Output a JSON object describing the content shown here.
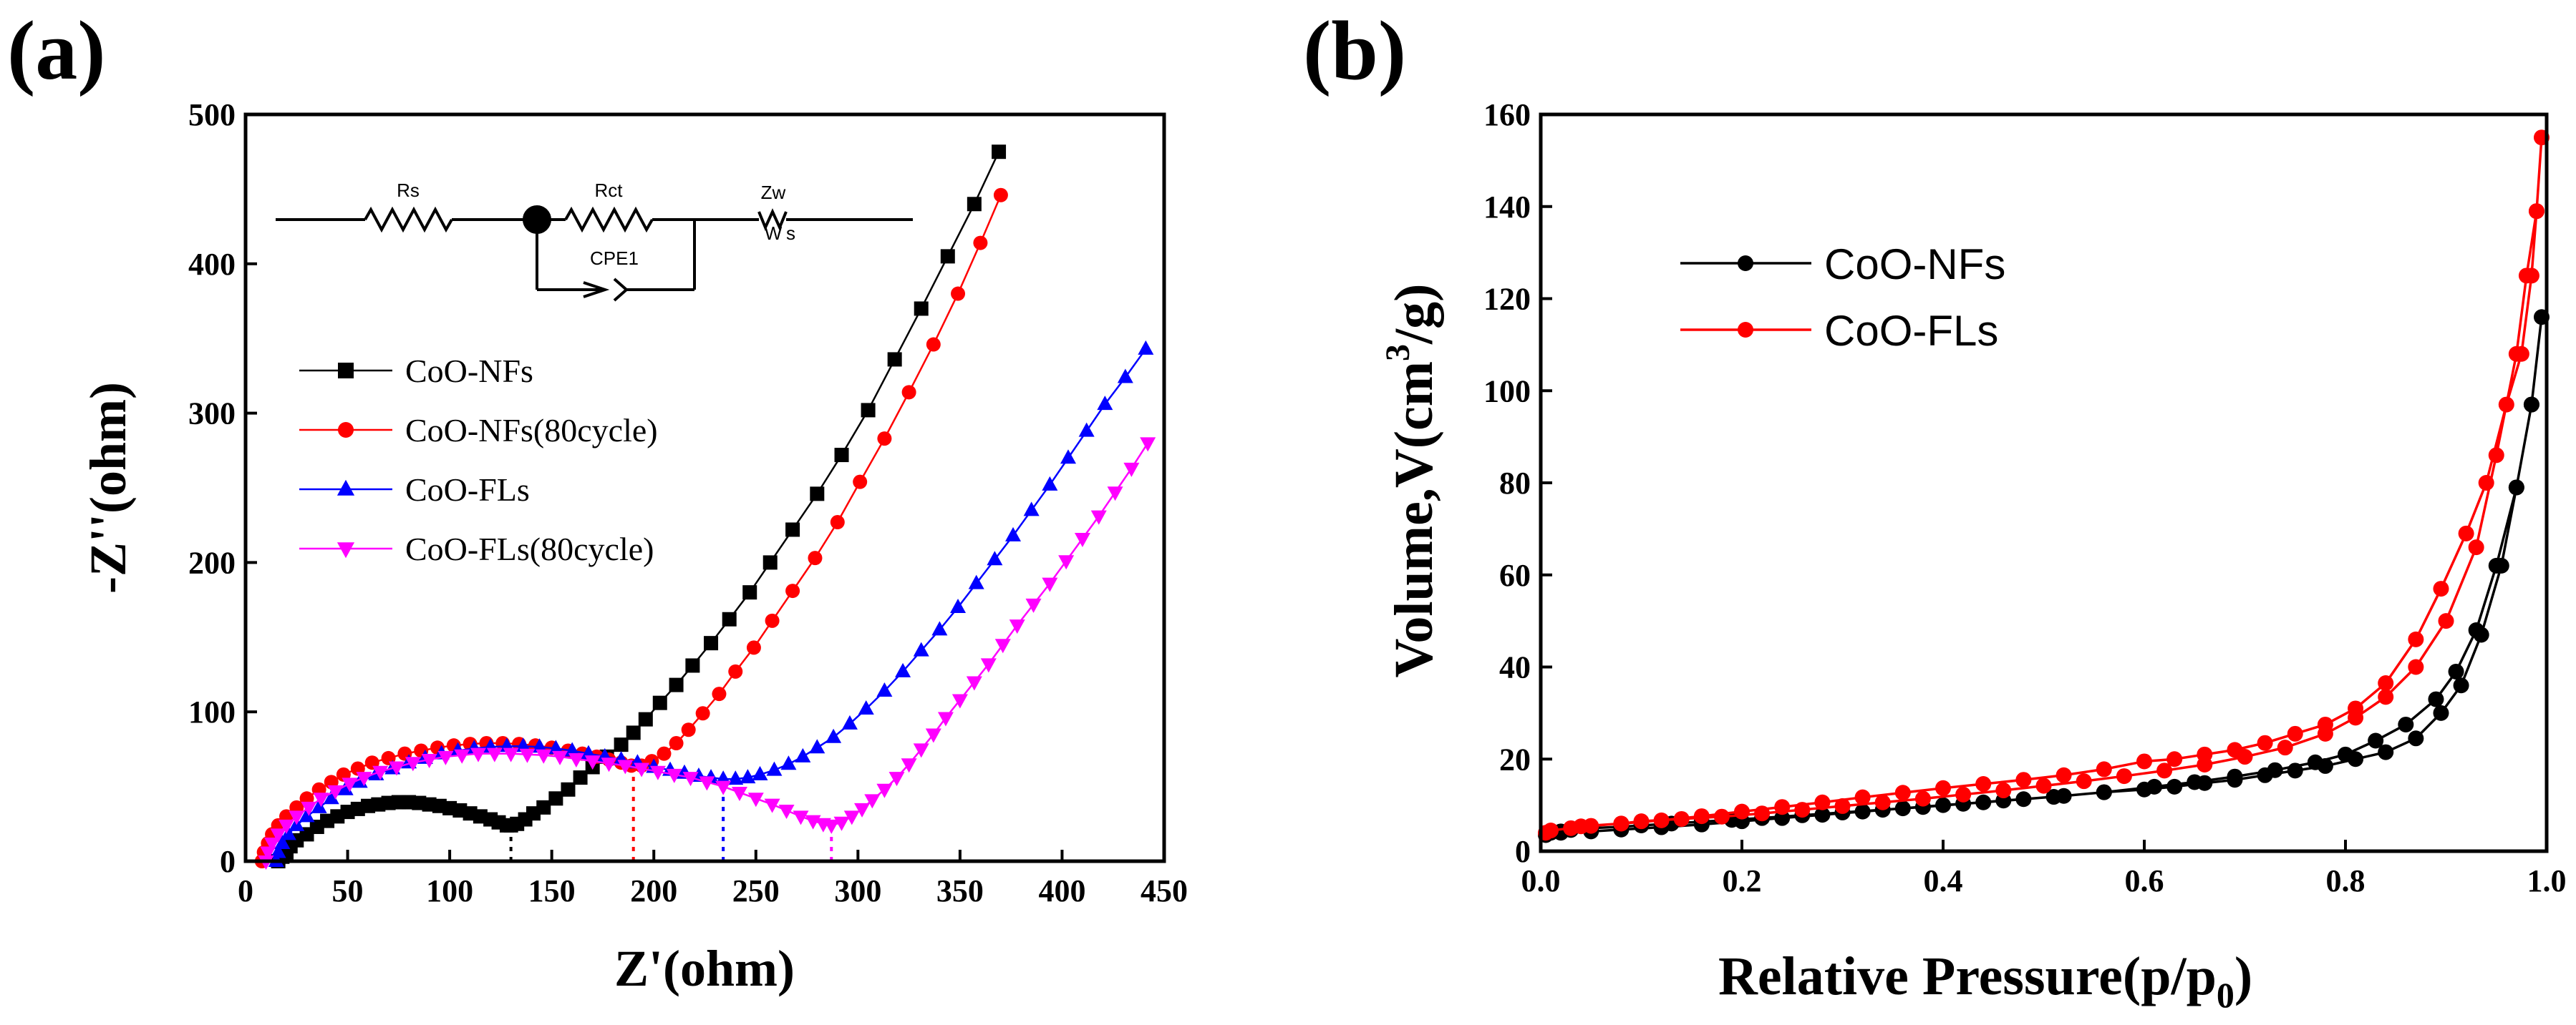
{
  "chart_data": [
    {
      "type": "scatter",
      "panel_label": "(a)",
      "xlabel": "Z'(ohm)",
      "ylabel": "-Z''(ohm)",
      "xlim": [
        0,
        450
      ],
      "ylim": [
        0,
        500
      ],
      "xticks": [
        "0",
        "50",
        "100",
        "150",
        "200",
        "250",
        "300",
        "350",
        "400",
        "450"
      ],
      "yticks": [
        "0",
        "100",
        "200",
        "300",
        "400",
        "500"
      ],
      "circuit": {
        "rs": "Rs",
        "rct": "Rct",
        "zw": "Zw",
        "cpe": "CPE1",
        "w": "W",
        "s": "s"
      },
      "guide_x": [
        130,
        190,
        234,
        287
      ],
      "series": [
        {
          "name": "CoO-NFs",
          "color": "#000000",
          "marker": "square",
          "x": [
            16,
            18,
            20,
            22,
            25,
            30,
            35,
            40,
            45,
            50,
            55,
            60,
            65,
            70,
            75,
            80,
            85,
            90,
            95,
            100,
            105,
            110,
            115,
            120,
            124,
            128,
            130,
            133,
            137,
            141,
            146,
            152,
            158,
            164,
            170,
            177,
            184,
            190,
            196,
            203,
            211,
            219,
            228,
            237,
            247,
            257,
            268,
            280,
            292,
            305,
            318,
            331,
            344,
            357,
            369
          ],
          "y": [
            0,
            3,
            6,
            10,
            14,
            18,
            23,
            27,
            30,
            33,
            35,
            37,
            38,
            39,
            39.5,
            39.5,
            39,
            38,
            37,
            35.5,
            34,
            32,
            30,
            28,
            26,
            24,
            24,
            25,
            28,
            32,
            36,
            42,
            48,
            56,
            63,
            70,
            78,
            86,
            95,
            106,
            118,
            131,
            146,
            162,
            180,
            200,
            222,
            246,
            272,
            302,
            336,
            370,
            405,
            440,
            475
          ]
        },
        {
          "name": "CoO-NFs(80cycle)",
          "color": "#ff0000",
          "marker": "circle",
          "x": [
            8,
            9,
            11,
            13,
            16,
            20,
            25,
            30,
            36,
            42,
            48,
            55,
            62,
            70,
            78,
            86,
            94,
            102,
            110,
            118,
            126,
            134,
            142,
            150,
            158,
            165,
            172,
            178,
            184,
            189,
            194,
            199,
            205,
            211,
            217,
            224,
            232,
            240,
            249,
            258,
            268,
            279,
            290,
            301,
            313,
            325,
            337,
            349,
            360,
            370
          ],
          "y": [
            0,
            6,
            12,
            18,
            24,
            30,
            36,
            42,
            48,
            53,
            58,
            62,
            66,
            69,
            72,
            74,
            76,
            77.5,
            78.5,
            79,
            79,
            78.5,
            77.5,
            76,
            74,
            72,
            70,
            68,
            66,
            64,
            64,
            67,
            72,
            79,
            88,
            99,
            112,
            127,
            143,
            161,
            181,
            203,
            227,
            254,
            283,
            314,
            346,
            380,
            414,
            446
          ]
        },
        {
          "name": "CoO-FLs",
          "color": "#0000ff",
          "marker": "triangle-up",
          "x": [
            15,
            16,
            18,
            21,
            25,
            30,
            36,
            42,
            49,
            56,
            64,
            72,
            80,
            88,
            96,
            104,
            112,
            120,
            128,
            136,
            144,
            152,
            160,
            168,
            176,
            184,
            192,
            200,
            208,
            215,
            222,
            228,
            234,
            240,
            246,
            252,
            259,
            266,
            273,
            280,
            288,
            296,
            304,
            313,
            322,
            331,
            340,
            349,
            358,
            367,
            376,
            385,
            394,
            403,
            412,
            421,
            431,
            441
          ],
          "y": [
            0,
            6,
            12,
            18,
            24,
            30,
            36,
            42,
            48,
            53,
            58,
            62,
            66,
            69,
            72,
            74,
            75.5,
            76.5,
            77,
            77,
            76.5,
            75.5,
            74,
            72,
            70,
            68,
            66,
            63,
            61,
            59,
            57,
            56,
            55,
            55,
            56,
            58,
            61,
            65,
            70,
            76,
            83,
            92,
            102,
            114,
            127,
            141,
            155,
            170,
            186,
            202,
            218,
            235,
            252,
            270,
            288,
            306,
            324,
            343
          ]
        },
        {
          "name": "CoO-FLs(80cycle)",
          "color": "#ff00ff",
          "marker": "triangle-down",
          "x": [
            10,
            11,
            13,
            16,
            20,
            25,
            31,
            37,
            44,
            51,
            58,
            66,
            74,
            82,
            90,
            98,
            106,
            114,
            122,
            130,
            138,
            146,
            154,
            162,
            170,
            178,
            186,
            194,
            202,
            210,
            218,
            226,
            234,
            242,
            250,
            258,
            265,
            272,
            278,
            283,
            287,
            292,
            297,
            302,
            307,
            313,
            319,
            325,
            331,
            337,
            343,
            350,
            357,
            364,
            371,
            378,
            386,
            394,
            402,
            410,
            418,
            426,
            434,
            442
          ],
          "y": [
            0,
            6,
            12,
            18,
            24,
            30,
            36,
            42,
            47,
            52,
            56,
            60,
            63,
            66,
            68,
            70,
            71,
            72,
            72,
            72,
            71.5,
            71,
            70,
            68.5,
            67,
            65.5,
            64,
            62,
            60,
            58,
            56,
            53,
            50,
            46,
            42,
            38,
            34,
            30,
            27,
            25,
            24,
            26,
            30,
            35,
            41,
            48,
            56,
            65,
            75,
            85,
            96,
            108,
            120,
            132,
            145,
            158,
            172,
            186,
            201,
            216,
            231,
            247,
            263,
            280
          ]
        }
      ]
    },
    {
      "type": "line",
      "panel_label": "(b)",
      "xlabel": "Relative Pressure(p/p0)",
      "xlabel_main": "Relative Pressure(p/p",
      "xlabel_sub": "0",
      "xlabel_end": ")",
      "ylabel": "Volume,V(cm3/g)",
      "ylabel_main": "Volume,V(cm",
      "ylabel_sup": "3",
      "ylabel_end": "/g)",
      "xlim": [
        0,
        1
      ],
      "ylim": [
        0,
        160
      ],
      "xticks": [
        "0.0",
        "0.2",
        "0.4",
        "0.6",
        "0.8",
        "1.0"
      ],
      "yticks": [
        "0",
        "20",
        "40",
        "60",
        "80",
        "100",
        "120",
        "140",
        "160"
      ],
      "series": [
        {
          "name": "CoO-NFs",
          "color": "#000000",
          "marker": "circle",
          "x": [
            0.005,
            0.01,
            0.02,
            0.03,
            0.05,
            0.08,
            0.1,
            0.13,
            0.16,
            0.19,
            0.22,
            0.26,
            0.3,
            0.34,
            0.38,
            0.42,
            0.46,
            0.51,
            0.56,
            0.61,
            0.65,
            0.69,
            0.73,
            0.77,
            0.8,
            0.83,
            0.86,
            0.89,
            0.91,
            0.93,
            0.95,
            0.97,
            0.985,
            0.995,
            0.985,
            0.97,
            0.955,
            0.935,
            0.915,
            0.895,
            0.87,
            0.84,
            0.81,
            0.78,
            0.75,
            0.72,
            0.69,
            0.66,
            0.63,
            0.6,
            0.56,
            0.52,
            0.48,
            0.44,
            0.4,
            0.36,
            0.32,
            0.28,
            0.24,
            0.2,
            0.16,
            0.12,
            0.08,
            0.05,
            0.02
          ],
          "y": [
            3.5,
            4,
            4.3,
            4.6,
            5,
            5.3,
            5.6,
            6,
            6.4,
            6.8,
            7.2,
            7.8,
            8.4,
            9,
            9.6,
            10.3,
            11,
            11.8,
            12.8,
            14,
            15,
            16.2,
            17.6,
            19.3,
            21,
            24,
            27.5,
            33,
            39,
            48,
            62,
            79,
            97,
            116,
            97,
            79,
            62,
            47,
            36,
            30,
            24.5,
            21.5,
            20,
            18.5,
            17.5,
            16.5,
            15.5,
            14.8,
            14,
            13.4,
            12.8,
            12,
            11.3,
            10.6,
            10,
            9.3,
            8.6,
            7.9,
            7.2,
            6.5,
            5.8,
            5.2,
            4.7,
            4.3,
            4
          ]
        },
        {
          "name": "CoO-FLs",
          "color": "#ff0000",
          "marker": "circle",
          "x": [
            0.005,
            0.01,
            0.03,
            0.05,
            0.08,
            0.1,
            0.14,
            0.18,
            0.22,
            0.26,
            0.3,
            0.34,
            0.38,
            0.42,
            0.46,
            0.5,
            0.54,
            0.58,
            0.62,
            0.66,
            0.7,
            0.74,
            0.78,
            0.81,
            0.84,
            0.87,
            0.9,
            0.93,
            0.95,
            0.97,
            0.98,
            0.99,
            0.995,
            0.99,
            0.985,
            0.975,
            0.96,
            0.94,
            0.92,
            0.895,
            0.87,
            0.84,
            0.81,
            0.78,
            0.75,
            0.72,
            0.69,
            0.66,
            0.63,
            0.6,
            0.56,
            0.52,
            0.48,
            0.44,
            0.4,
            0.36,
            0.32,
            0.28,
            0.24,
            0.2,
            0.16,
            0.12,
            0.08,
            0.04
          ],
          "y": [
            4,
            4.5,
            5,
            5.5,
            6,
            6.5,
            7,
            7.5,
            8.2,
            9,
            9.8,
            10.6,
            11.4,
            12.3,
            13.2,
            14.2,
            15.2,
            16.3,
            17.5,
            18.8,
            20.5,
            22.5,
            25.5,
            29,
            33.5,
            40,
            50,
            66,
            86,
            108,
            125,
            139,
            155,
            139,
            125,
            108,
            97,
            80,
            69,
            57,
            46,
            36.5,
            31,
            27.5,
            25.5,
            23.5,
            22,
            21,
            20,
            19.5,
            17.8,
            16.5,
            15.5,
            14.6,
            13.7,
            12.7,
            11.7,
            10.6,
            9.6,
            8.6,
            7.6,
            6.7,
            6,
            5.4
          ]
        }
      ]
    }
  ]
}
